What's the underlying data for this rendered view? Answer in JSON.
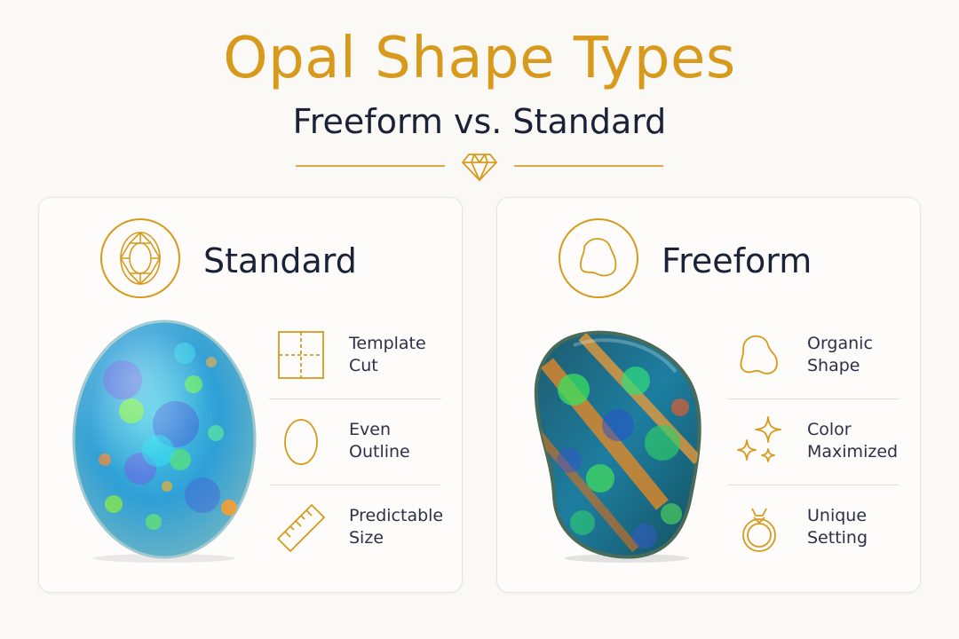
{
  "header": {
    "title": "Opal Shape Types",
    "subtitle": "Freeform vs. Standard",
    "divider_icon": "diamond-icon"
  },
  "colors": {
    "accent": "#d79a1c",
    "heading": "#1b2238",
    "background": "#faf9f6"
  },
  "cards": [
    {
      "title": "Standard",
      "badge_icon": "oval-gem-icon",
      "image": "oval-opal-stone",
      "features": [
        {
          "icon": "template-grid-icon",
          "label": "Template\nCut"
        },
        {
          "icon": "oval-outline-icon",
          "label": "Even\nOutline"
        },
        {
          "icon": "ruler-icon",
          "label": "Predictable\nSize"
        }
      ]
    },
    {
      "title": "Freeform",
      "badge_icon": "organic-shape-icon",
      "image": "freeform-opal-stone",
      "features": [
        {
          "icon": "organic-blob-icon",
          "label": "Organic\nShape"
        },
        {
          "icon": "sparkles-icon",
          "label": "Color\nMaximized"
        },
        {
          "icon": "ring-icon",
          "label": "Unique\nSetting"
        }
      ]
    }
  ]
}
